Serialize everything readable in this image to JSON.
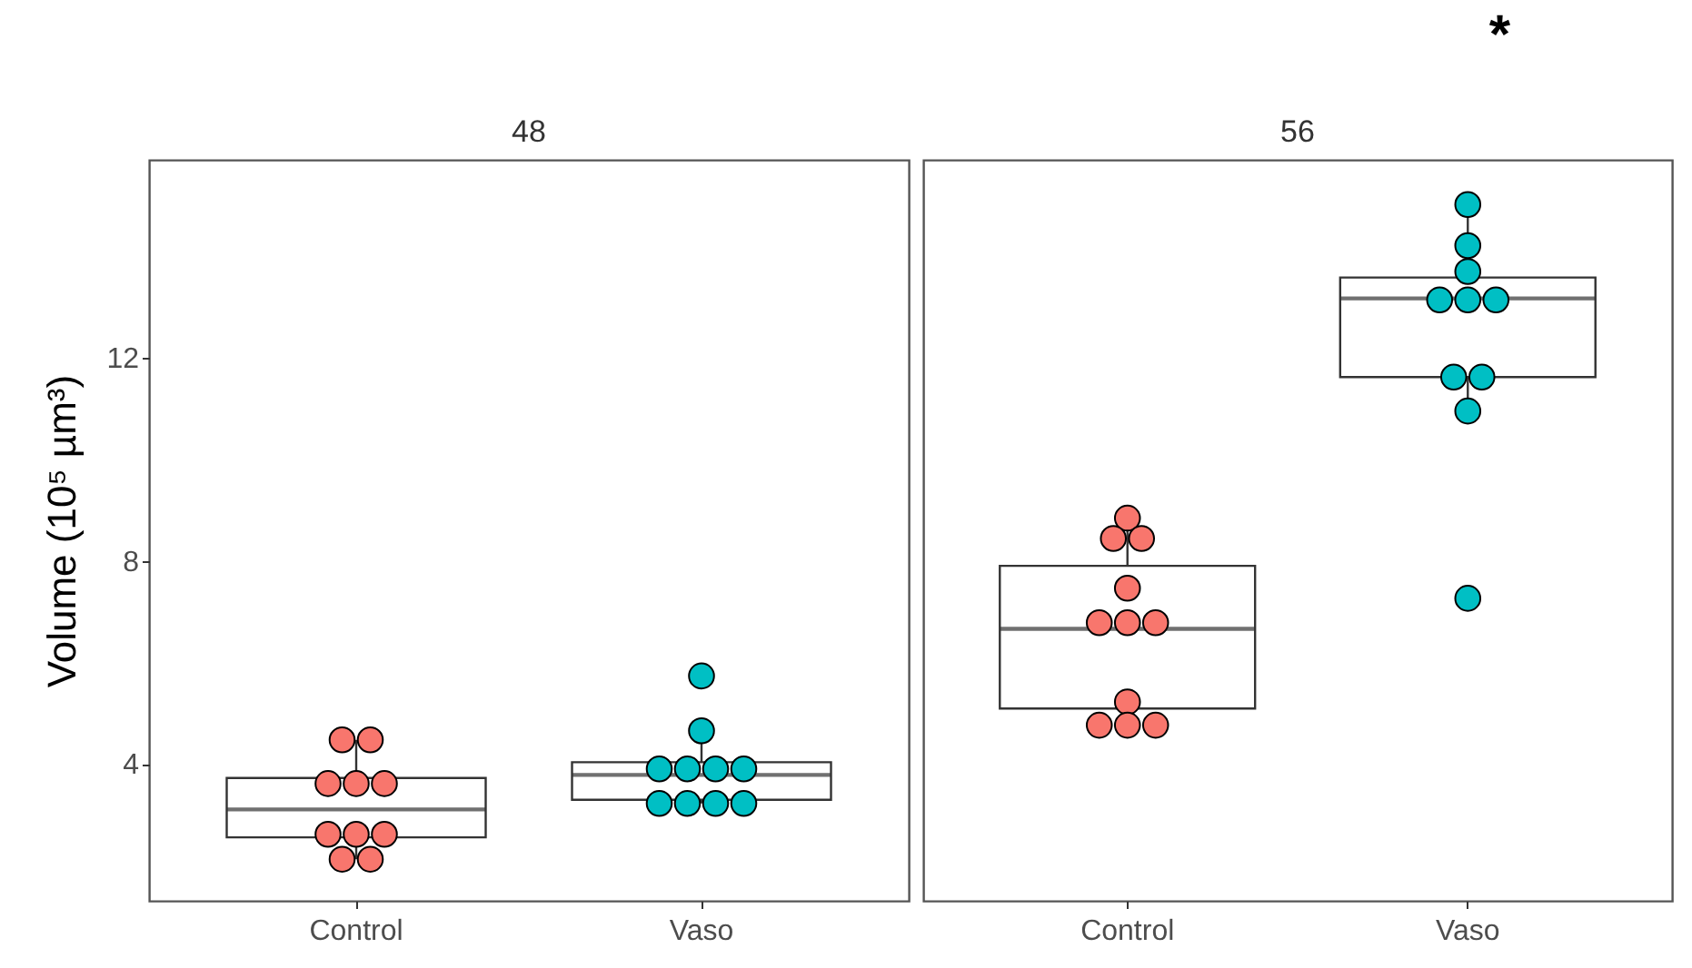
{
  "chart_data": [
    {
      "type": "box",
      "title": "48",
      "ylabel": "Volume (10⁵ µm³)",
      "categories": [
        "Control",
        "Vaso"
      ],
      "ylim": [
        1.3,
        15.9
      ],
      "yticks": [
        4,
        8,
        12
      ],
      "grid": false,
      "marker": "circle",
      "series": [
        {
          "type": "box",
          "color": "#333333",
          "boxes": [
            {
              "low": 2.12,
              "q1": 2.55,
              "median": 3.1,
              "q3": 3.72,
              "high": 4.47
            },
            {
              "low": 3.22,
              "q1": 3.29,
              "median": 3.78,
              "q3": 4.03,
              "high": 4.65
            }
          ]
        },
        {
          "type": "scatter",
          "x": [
            "Control",
            "Control",
            "Control",
            "Control",
            "Control",
            "Control",
            "Control",
            "Control",
            "Control",
            "Control",
            "Vaso",
            "Vaso",
            "Vaso",
            "Vaso",
            "Vaso",
            "Vaso",
            "Vaso",
            "Vaso",
            "Vaso",
            "Vaso"
          ],
          "values": [
            4.47,
            4.47,
            3.61,
            3.61,
            3.61,
            2.61,
            2.61,
            2.61,
            2.12,
            2.12,
            5.73,
            4.65,
            3.9,
            3.9,
            3.9,
            3.9,
            3.22,
            3.22,
            3.22,
            3.22
          ],
          "colors": [
            "#f8766d",
            "#f8766d",
            "#f8766d",
            "#f8766d",
            "#f8766d",
            "#f8766d",
            "#f8766d",
            "#f8766d",
            "#f8766d",
            "#f8766d",
            "#00bfc4",
            "#00bfc4",
            "#00bfc4",
            "#00bfc4",
            "#00bfc4",
            "#00bfc4",
            "#00bfc4",
            "#00bfc4",
            "#00bfc4",
            "#00bfc4"
          ]
        }
      ]
    },
    {
      "type": "box",
      "title": "56",
      "categories": [
        "Control",
        "Vaso"
      ],
      "ylim": [
        1.3,
        15.9
      ],
      "yticks": [
        4,
        8,
        12
      ],
      "tick_labels": "x",
      "grid": false,
      "marker": "circle",
      "annotations": [
        "*"
      ],
      "series": [
        {
          "type": "box",
          "color": "#333333",
          "boxes": [
            {
              "low": 4.76,
              "q1": 5.09,
              "median": 6.66,
              "q3": 7.9,
              "high": 8.84
            },
            {
              "low": 10.95,
              "q1": 11.62,
              "median": 13.17,
              "q3": 13.58,
              "high": 15.02
            }
          ]
        },
        {
          "type": "scatter",
          "x": [
            "Control",
            "Control",
            "Control",
            "Control",
            "Control",
            "Control",
            "Control",
            "Control",
            "Control",
            "Control",
            "Control",
            "Vaso",
            "Vaso",
            "Vaso",
            "Vaso",
            "Vaso",
            "Vaso",
            "Vaso",
            "Vaso",
            "Vaso",
            "Vaso"
          ],
          "values": [
            8.84,
            8.44,
            8.44,
            7.46,
            6.78,
            6.78,
            6.78,
            5.22,
            4.76,
            4.76,
            4.76,
            15.02,
            14.21,
            13.7,
            13.14,
            13.14,
            13.14,
            11.62,
            11.62,
            10.95,
            7.26
          ],
          "colors": [
            "#f8766d",
            "#f8766d",
            "#f8766d",
            "#f8766d",
            "#f8766d",
            "#f8766d",
            "#f8766d",
            "#f8766d",
            "#f8766d",
            "#f8766d",
            "#f8766d",
            "#00bfc4",
            "#00bfc4",
            "#00bfc4",
            "#00bfc4",
            "#00bfc4",
            "#00bfc4",
            "#00bfc4",
            "#00bfc4",
            "#00bfc4",
            "#00bfc4"
          ]
        }
      ]
    }
  ]
}
